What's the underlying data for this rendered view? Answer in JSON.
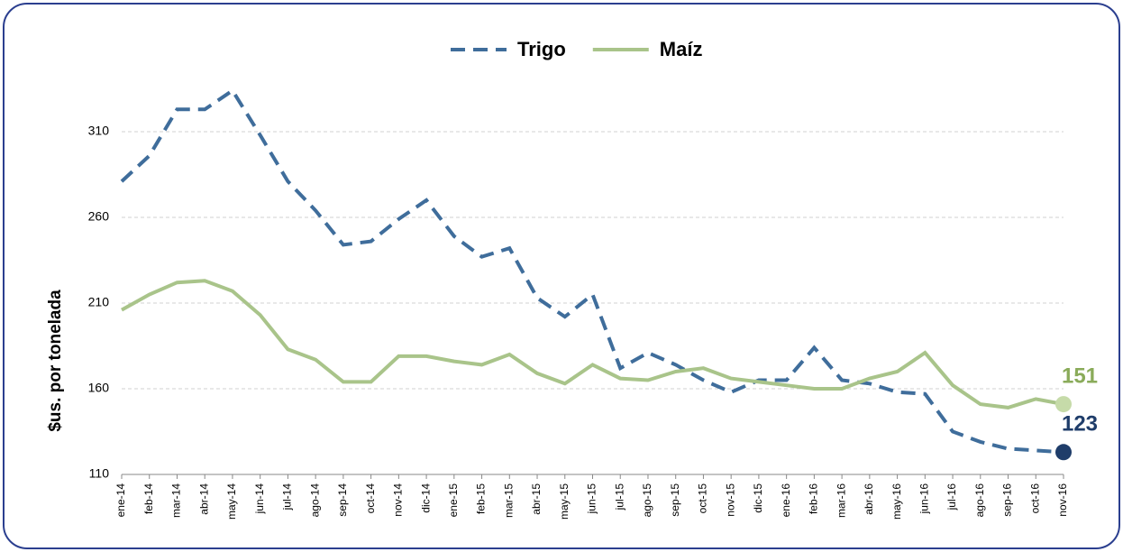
{
  "chart_data": {
    "type": "line",
    "y_label": "$us. por tonelada",
    "categories": [
      "ene-14",
      "feb-14",
      "mar-14",
      "abr-14",
      "may-14",
      "jun-14",
      "jul-14",
      "ago-14",
      "sep-14",
      "oct-14",
      "nov-14",
      "dic-14",
      "ene-15",
      "feb-15",
      "mar-15",
      "abr-15",
      "may-15",
      "jun-15",
      "jul-15",
      "ago-15",
      "sep-15",
      "oct-15",
      "nov-15",
      "dic-15",
      "ene-16",
      "feb-16",
      "mar-16",
      "abr-16",
      "may-16",
      "jun-16",
      "jul-16",
      "ago-16",
      "sep-16",
      "oct-16",
      "nov-16"
    ],
    "series": [
      {
        "name": "Trigo",
        "color": "#3f6d9b",
        "dash": true,
        "end_color": "#1f3d6a",
        "values": [
          281,
          296,
          323,
          323,
          334,
          308,
          281,
          264,
          244,
          246,
          259,
          270,
          249,
          237,
          242,
          213,
          202,
          215,
          172,
          181,
          174,
          165,
          158,
          165,
          165,
          184,
          165,
          163,
          158,
          157,
          135,
          129,
          125,
          124,
          123
        ],
        "value_labels": [
          null,
          null,
          null,
          null,
          null,
          null,
          null,
          null,
          null,
          null,
          null,
          null,
          null,
          null,
          null,
          null,
          null,
          null,
          null,
          null,
          null,
          null,
          null,
          null,
          null,
          null,
          null,
          null,
          null,
          null,
          null,
          null,
          null,
          null,
          "123"
        ]
      },
      {
        "name": "Maíz",
        "color": "#a9c48a",
        "dash": false,
        "end_color": "#8aab5a",
        "values": [
          206,
          215,
          222,
          223,
          217,
          203,
          183,
          177,
          164,
          164,
          179,
          179,
          176,
          174,
          180,
          169,
          163,
          174,
          166,
          165,
          170,
          172,
          166,
          164,
          162,
          160,
          160,
          166,
          170,
          181,
          162,
          151,
          149,
          154,
          151
        ],
        "value_labels": [
          null,
          null,
          null,
          null,
          null,
          null,
          null,
          null,
          null,
          null,
          null,
          null,
          null,
          null,
          null,
          null,
          null,
          null,
          null,
          null,
          null,
          null,
          null,
          null,
          null,
          null,
          null,
          null,
          null,
          null,
          null,
          null,
          null,
          null,
          "151"
        ]
      }
    ],
    "ylim": [
      110,
      340
    ],
    "yticks": [
      110,
      160,
      210,
      260,
      310
    ],
    "grid": true,
    "legend": "top"
  }
}
